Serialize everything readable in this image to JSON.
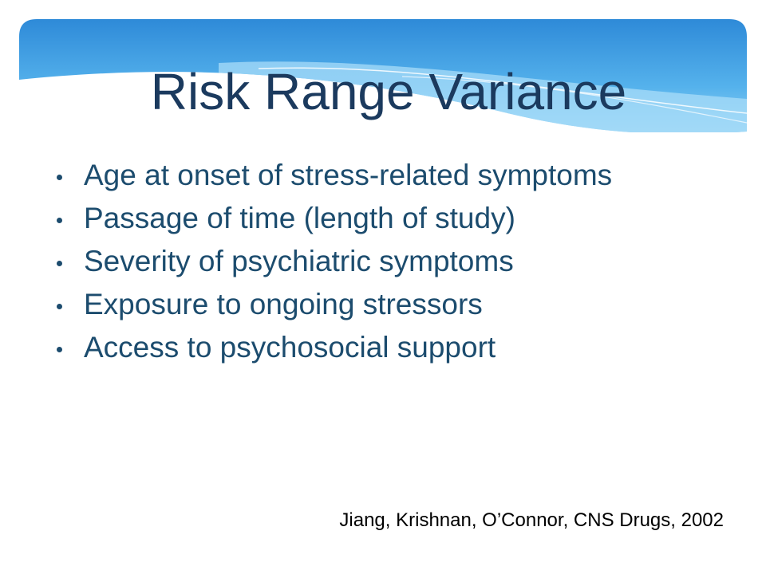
{
  "slide": {
    "title": "Risk Range Variance",
    "bullets": [
      "Age at onset of stress-related symptoms",
      "Passage of time (length of study)",
      "Severity of psychiatric symptoms",
      "Exposure to ongoing stressors",
      "Access to psychosocial support"
    ],
    "citation": "Jiang, Krishnan, O’Connor, CNS Drugs, 2002"
  },
  "colors": {
    "title": "#1B3A5E",
    "body": "#1C4C6E",
    "citation": "#000000",
    "banner_top": "#2E8AD8",
    "banner_mid": "#55B2EC",
    "banner_bottom": "#8FD0F4"
  }
}
